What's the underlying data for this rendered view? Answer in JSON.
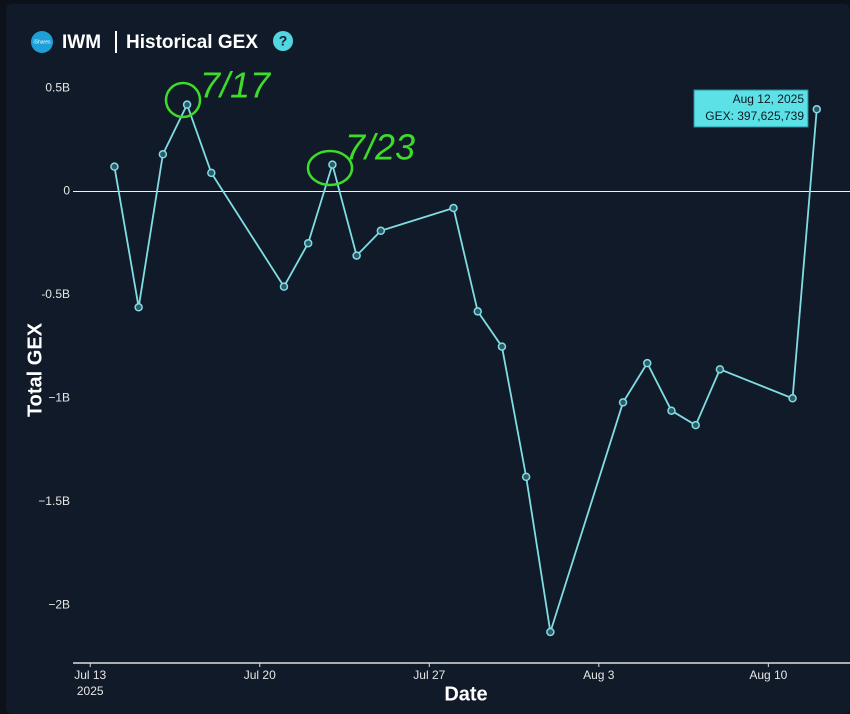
{
  "header": {
    "icon_label": "iShares",
    "ticker": "IWM",
    "title": "Historical GEX",
    "help": "?"
  },
  "chart_data": {
    "type": "line",
    "y_label": "Total GEX",
    "x_label": "Date",
    "x": [
      "2025-07-14",
      "2025-07-15",
      "2025-07-16",
      "2025-07-17",
      "2025-07-18",
      "2025-07-21",
      "2025-07-22",
      "2025-07-23",
      "2025-07-24",
      "2025-07-25",
      "2025-07-28",
      "2025-07-29",
      "2025-07-30",
      "2025-07-31",
      "2025-08-01",
      "2025-08-04",
      "2025-08-05",
      "2025-08-06",
      "2025-08-07",
      "2025-08-08",
      "2025-08-11",
      "2025-08-12"
    ],
    "series": [
      {
        "name": "GEX",
        "color": "#7fdde4",
        "values": [
          120000000,
          -560000000,
          180000000,
          420000000,
          90000000,
          -460000000,
          -250000000,
          130000000,
          -310000000,
          -190000000,
          -80000000,
          -580000000,
          -750000000,
          -1380000000,
          -2130000000,
          -1020000000,
          -830000000,
          -1060000000,
          -1130000000,
          -860000000,
          -1000000000,
          397625739
        ]
      }
    ],
    "xlim": [
      "2025-07-12",
      "2025-08-13"
    ],
    "xticks": [
      {
        "value": "2025-07-13",
        "label": "Jul 13"
      },
      {
        "value": "2025-07-20",
        "label": "Jul 20"
      },
      {
        "value": "2025-07-27",
        "label": "Jul 27"
      },
      {
        "value": "2025-08-03",
        "label": "Aug 3"
      },
      {
        "value": "2025-08-10",
        "label": "Aug 10"
      }
    ],
    "x_year_label": "2025",
    "ylim": [
      -2280000000,
      660000000
    ],
    "yticks": [
      {
        "value": 500000000,
        "label": "0.5B"
      },
      0,
      {
        "value": -500000000,
        "label": "-0.5B"
      },
      {
        "value": -1000000000,
        "label": "−1B"
      },
      {
        "value": -1500000000,
        "label": "−1.5B"
      },
      {
        "value": -2000000000,
        "label": "−2B"
      }
    ],
    "zero_line": true,
    "tooltip": {
      "title": "Aug 12, 2025",
      "label": "GEX: 397,625,739"
    },
    "annotations": [
      "7/17",
      "7/23"
    ]
  }
}
